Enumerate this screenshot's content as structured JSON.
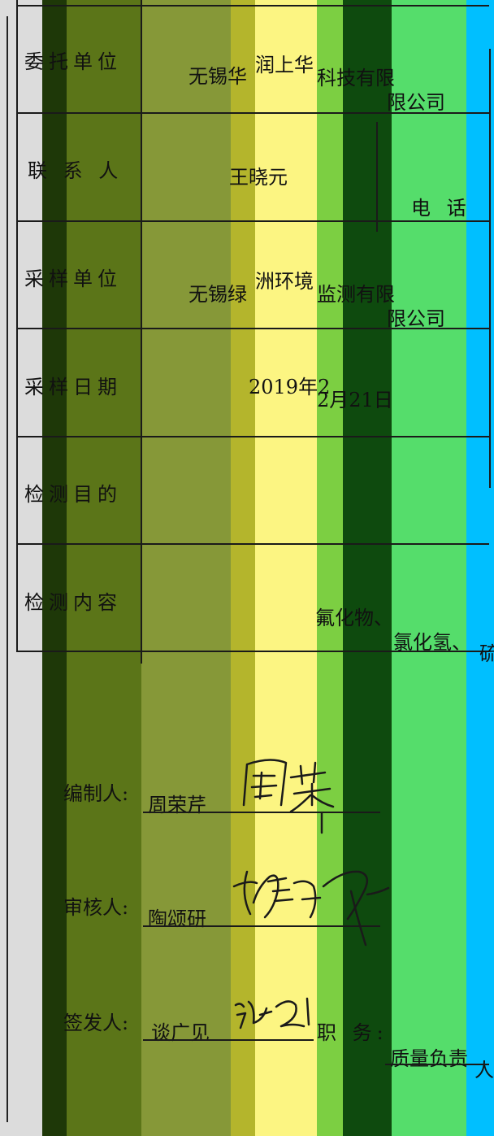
{
  "rows": {
    "client_label": "委托单位",
    "client_value_a": "无锡华",
    "client_value_b": "润上华",
    "client_value_c": "科技有限",
    "client_value_d": "限公司",
    "contact_label": "联 系 人",
    "contact_value": "王晓元",
    "phone_label": "电 话",
    "sampler_label": "采样单位",
    "sampler_value_a": "无锡绿",
    "sampler_value_b": "洲环境",
    "sampler_value_c": "监测有限",
    "sampler_value_d": "限公司",
    "date_label": "采样日期",
    "date_value_a": "2019年2",
    "date_value_b": "2月21日",
    "purpose_label": "检测目的",
    "content_label": "检测内容",
    "content_value_a": "氟化物、",
    "content_value_b": "氯化氢、",
    "content_value_c": "硫"
  },
  "signatures": {
    "compiler_label": "编制人:",
    "compiler_name": "周荣芹",
    "reviewer_label": "审核人:",
    "reviewer_name": "陶颂研",
    "issuer_label": "签发人:",
    "issuer_name": "谈广见",
    "duty_label": "职 务:",
    "duty_value": "质量负责",
    "duty_tail": "人"
  },
  "colors": {
    "band_gray": "#dcdcdc",
    "band_darkgreen": "#1e3808",
    "band_olive": "#5b7518",
    "band_khaki": "#869838",
    "band_mustard": "#b4b52c",
    "band_yellow": "#fcf582",
    "band_lime": "#7ccf42",
    "band_forest": "#0e4a0e",
    "band_green": "#55dd6b",
    "band_cyan": "#00bfff"
  }
}
